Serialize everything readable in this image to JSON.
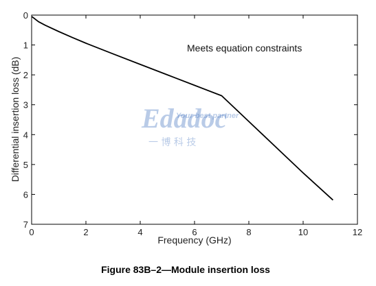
{
  "chart_data": {
    "type": "line",
    "xlabel": "Frequency (GHz)",
    "ylabel": "Differential insertion loss (dB)",
    "xlim": [
      0,
      12
    ],
    "ylim": [
      0,
      7
    ],
    "y_inverted": true,
    "xticks": [
      0,
      2,
      4,
      6,
      8,
      10,
      12
    ],
    "yticks": [
      0,
      1,
      2,
      3,
      4,
      5,
      6,
      7
    ],
    "grid": false,
    "annotation": "Meets equation constraints",
    "series": [
      {
        "color": "#000000",
        "x": [
          0.01,
          0.25,
          0.5,
          1,
          1.5,
          2,
          3,
          4,
          5,
          6,
          7,
          8,
          9,
          10,
          11.1
        ],
        "y": [
          0.05,
          0.22,
          0.34,
          0.55,
          0.75,
          0.94,
          1.3,
          1.65,
          2.0,
          2.35,
          2.7,
          3.56,
          4.42,
          5.28,
          6.19
        ]
      }
    ]
  },
  "caption": "Figure 83B–2—Module insertion loss",
  "watermark": {
    "logo_text": "Edadoc",
    "tagline": "Your best partner",
    "chinese": "一 博 科 技"
  }
}
